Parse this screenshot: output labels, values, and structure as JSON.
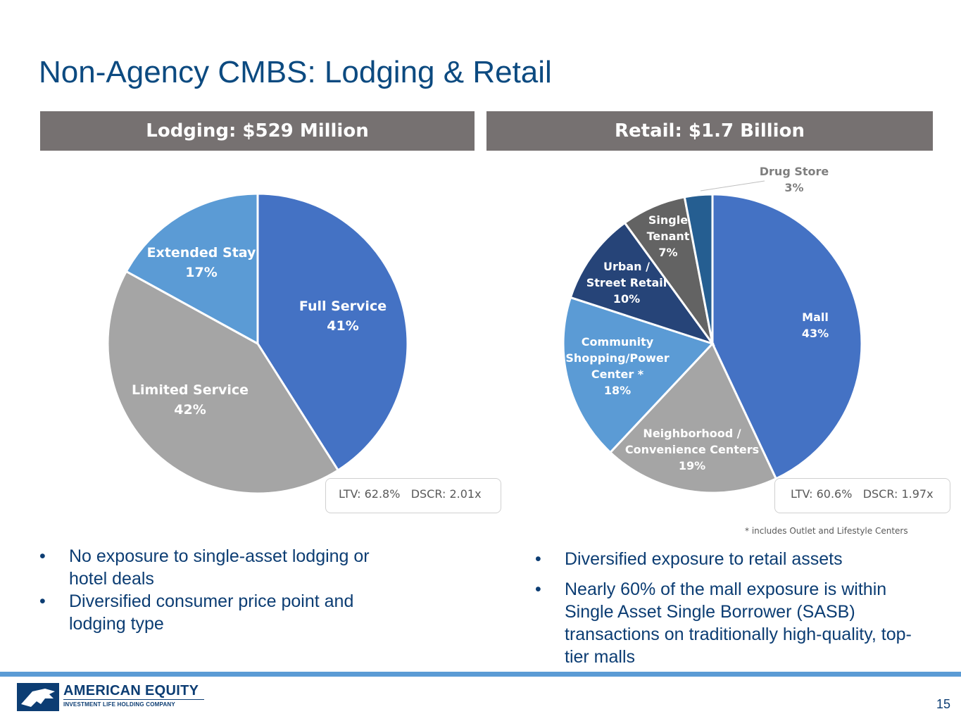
{
  "title": "Non-Agency CMBS: Lodging & Retail",
  "panels": {
    "lodging_header": "Lodging: $529 Million",
    "retail_header": "Retail: $1.7 Billion"
  },
  "chart_data": [
    {
      "type": "pie",
      "title": "Lodging: $529 Million",
      "categories": [
        "Full Service",
        "Limited Service",
        "Extended Stay"
      ],
      "values": [
        41,
        42,
        17
      ],
      "value_labels": [
        "41%",
        "42%",
        "17%"
      ],
      "colors": [
        "#4472c4",
        "#a5a5a5",
        "#5b9bd5"
      ],
      "label_colors": [
        "#ffffff",
        "#ffffff",
        "#ffffff"
      ]
    },
    {
      "type": "pie",
      "title": "Retail: $1.7 Billion",
      "categories": [
        "Mall",
        "Neighborhood / Convenience Centers",
        "Community Shopping/Power Center *",
        "Urban / Street Retail",
        "Single Tenant",
        "Drug Store"
      ],
      "label_lines": [
        [
          "Mall"
        ],
        [
          "Neighborhood /",
          "Convenience Centers"
        ],
        [
          "Community",
          "Shopping/Power",
          "Center *"
        ],
        [
          "Urban /",
          "Street Retail"
        ],
        [
          "Single",
          "Tenant"
        ],
        [
          "Drug Store"
        ]
      ],
      "values": [
        43,
        19,
        18,
        10,
        7,
        3
      ],
      "value_labels": [
        "43%",
        "19%",
        "18%",
        "10%",
        "7%",
        "3%"
      ],
      "colors": [
        "#4472c4",
        "#a5a5a5",
        "#5b9bd5",
        "#264478",
        "#636363",
        "#255e91"
      ],
      "label_colors": [
        "#ffffff",
        "#ffffff",
        "#ffffff",
        "#ffffff",
        "#ffffff",
        "#7f7f7f"
      ]
    }
  ],
  "metrics": {
    "lodging": "LTV: 62.8%   DSCR: 2.01x",
    "retail": "LTV: 60.6%   DSCR: 1.97x"
  },
  "footnote": "* includes Outlet and Lifestyle Centers",
  "bullets_left": [
    "No exposure to single-asset lodging or hotel deals",
    "Diversified consumer price point and lodging type"
  ],
  "bullets_right": [
    "Diversified exposure to retail assets",
    "Nearly 60% of the mall exposure is within Single Asset Single Borrower (SASB) transactions on traditionally high-quality, top-tier malls"
  ],
  "bullet_glyph": "•",
  "logo": {
    "name": "AMERICAN EQUITY",
    "tagline": "INVESTMENT LIFE HOLDING COMPANY"
  },
  "page_number": "15"
}
